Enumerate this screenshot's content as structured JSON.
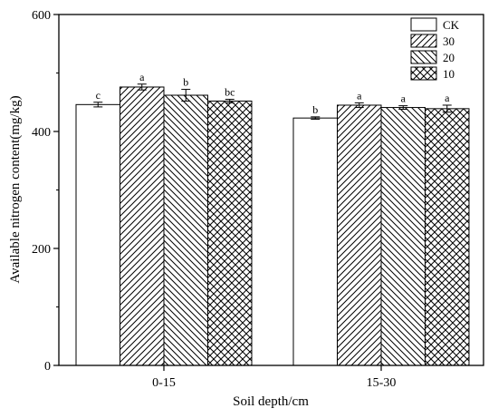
{
  "chart_data": {
    "type": "bar",
    "title": "",
    "xlabel": "Soil depth/cm",
    "ylabel": "Available nitrogen content(mg/kg)",
    "ylim": [
      0,
      600
    ],
    "yticks": [
      0,
      200,
      400,
      600
    ],
    "categories": [
      "0-15",
      "15-30"
    ],
    "grid": false,
    "legend_position": "top-right",
    "series": [
      {
        "name": "CK",
        "pattern": "none",
        "values": [
          446,
          423
        ],
        "errors": [
          4,
          2
        ],
        "labels": [
          "c",
          "b"
        ]
      },
      {
        "name": "30",
        "pattern": "diagonal-right",
        "values": [
          476,
          445
        ],
        "errors": [
          5,
          4
        ],
        "labels": [
          "a",
          "a"
        ]
      },
      {
        "name": "20",
        "pattern": "diagonal-left",
        "values": [
          462,
          441
        ],
        "errors": [
          10,
          3
        ],
        "labels": [
          "b",
          "a"
        ]
      },
      {
        "name": "10",
        "pattern": "crosshatch",
        "values": [
          452,
          439
        ],
        "errors": [
          3,
          6
        ],
        "labels": [
          "bc",
          "a"
        ]
      }
    ],
    "colors": {
      "bar_fill": "#ffffff",
      "stroke": "#000000"
    }
  }
}
